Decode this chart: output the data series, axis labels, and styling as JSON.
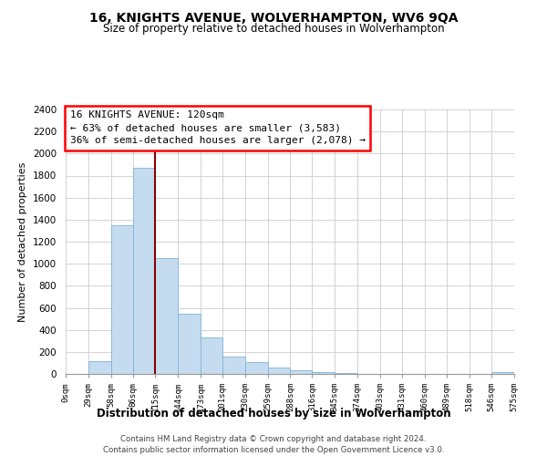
{
  "title": "16, KNIGHTS AVENUE, WOLVERHAMPTON, WV6 9QA",
  "subtitle": "Size of property relative to detached houses in Wolverhampton",
  "xlabel": "Distribution of detached houses by size in Wolverhampton",
  "ylabel": "Number of detached properties",
  "bar_color": "#c5dcf0",
  "bar_edge_color": "#7fb3d9",
  "red_line_x": 115,
  "annotation_line1": "16 KNIGHTS AVENUE: 120sqm",
  "annotation_line2": "← 63% of detached houses are smaller (3,583)",
  "annotation_line3": "36% of semi-detached houses are larger (2,078) →",
  "bin_edges": [
    0,
    29,
    58,
    86,
    115,
    144,
    173,
    201,
    230,
    259,
    288,
    316,
    345,
    374,
    403,
    431,
    460,
    489,
    518,
    546,
    575
  ],
  "counts": [
    0,
    120,
    1350,
    1870,
    1050,
    550,
    335,
    160,
    105,
    60,
    30,
    20,
    5,
    2,
    1,
    0,
    0,
    0,
    0,
    20
  ],
  "ylim": [
    0,
    2400
  ],
  "yticks": [
    0,
    200,
    400,
    600,
    800,
    1000,
    1200,
    1400,
    1600,
    1800,
    2000,
    2200,
    2400
  ],
  "tick_labels": [
    "0sqm",
    "29sqm",
    "58sqm",
    "86sqm",
    "115sqm",
    "144sqm",
    "173sqm",
    "201sqm",
    "230sqm",
    "259sqm",
    "288sqm",
    "316sqm",
    "345sqm",
    "374sqm",
    "403sqm",
    "431sqm",
    "460sqm",
    "489sqm",
    "518sqm",
    "546sqm",
    "575sqm"
  ],
  "footer_line1": "Contains HM Land Registry data © Crown copyright and database right 2024.",
  "footer_line2": "Contains public sector information licensed under the Open Government Licence v3.0.",
  "background_color": "#ffffff",
  "grid_color": "#cccccc"
}
